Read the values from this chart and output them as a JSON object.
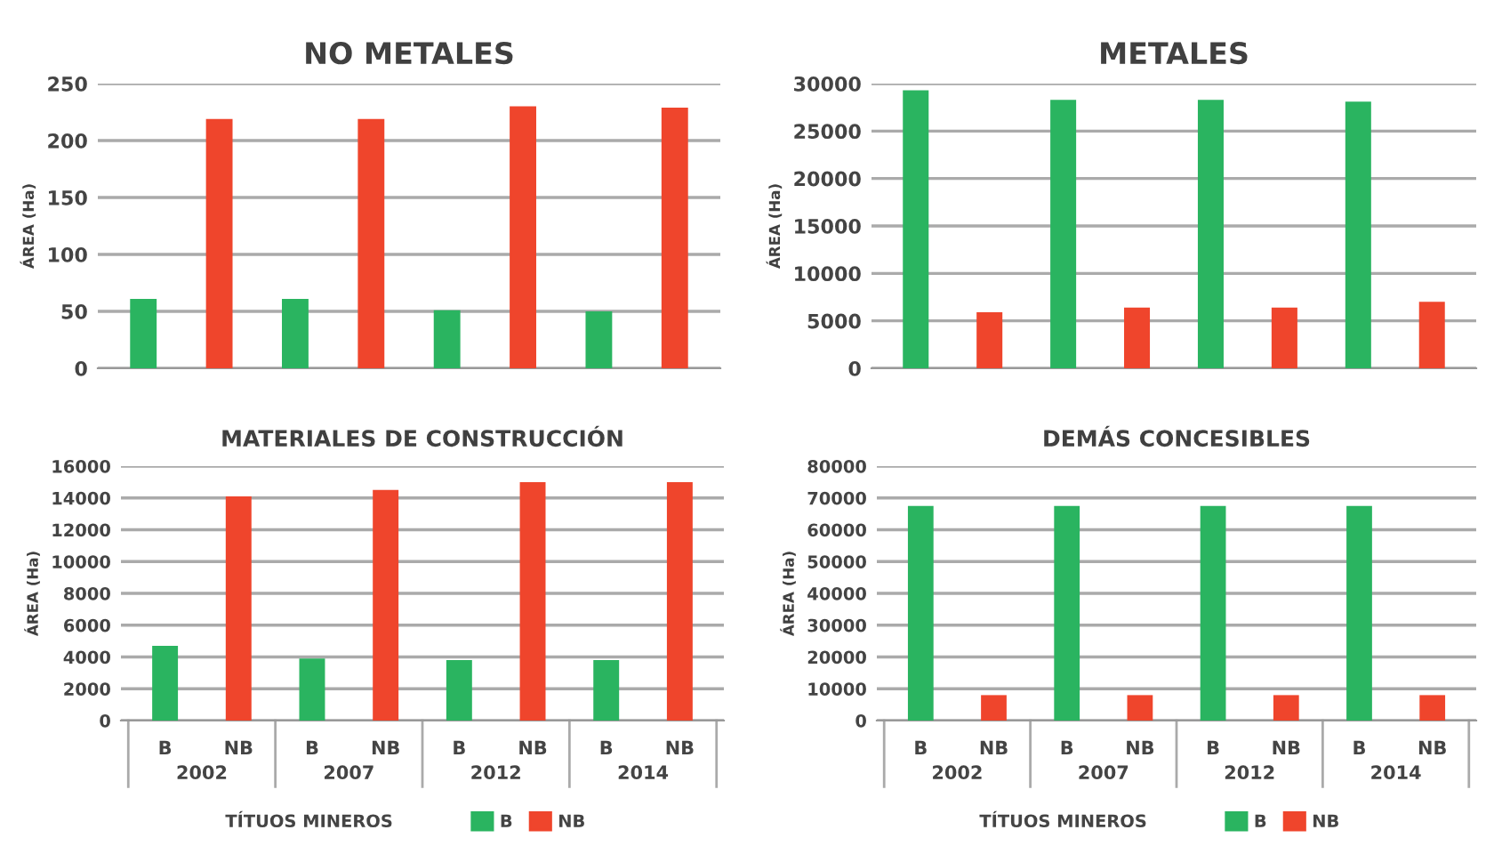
{
  "chart_data": [
    {
      "type": "bar",
      "title": "NO METALES",
      "ylabel": "ÁREA (Ha)",
      "categories": [
        null,
        null,
        null,
        null,
        null,
        null,
        null,
        null
      ],
      "series": [
        {
          "color": "#2ab460",
          "values": [
            61,
            null,
            61,
            null,
            51,
            null,
            50,
            null
          ]
        },
        {
          "color": "#ef452c",
          "values": [
            null,
            219,
            null,
            219,
            null,
            230,
            null,
            229
          ]
        }
      ],
      "ylim": [
        0,
        250
      ],
      "yticks": [
        0,
        50,
        100,
        150,
        200,
        250
      ],
      "grid": "y",
      "legend": false
    },
    {
      "type": "bar",
      "title": "METALES",
      "ylabel": "ÁREA (Ha)",
      "categories": [
        null,
        null,
        null,
        null,
        null,
        null,
        null,
        null
      ],
      "series": [
        {
          "color": "#2ab460",
          "values": [
            29300,
            null,
            28300,
            null,
            28300,
            null,
            28100,
            null
          ]
        },
        {
          "color": "#ef452c",
          "values": [
            null,
            5900,
            null,
            6400,
            null,
            6400,
            null,
            7000
          ]
        }
      ],
      "ylim": [
        0,
        30000
      ],
      "yticks": [
        0,
        5000,
        10000,
        15000,
        20000,
        25000,
        30000
      ],
      "grid": "y",
      "legend": false
    },
    {
      "type": "bar",
      "title": "MATERIALES DE CONSTRUCCIÓN",
      "ylabel": "ÁREA (Ha)",
      "categories": [
        "B",
        "NB",
        "B",
        "NB",
        "B",
        "NB",
        "B",
        "NB"
      ],
      "series": [
        {
          "name": "B",
          "color": "#2ab460",
          "values": [
            4700,
            null,
            3900,
            null,
            3800,
            null,
            3800,
            null
          ]
        },
        {
          "name": "NB",
          "color": "#ef452c",
          "values": [
            null,
            14100,
            null,
            14500,
            null,
            15000,
            null,
            15000
          ]
        }
      ],
      "ylim": [
        0,
        16000
      ],
      "yticks": [
        0,
        2000,
        4000,
        6000,
        8000,
        10000,
        12000,
        14000,
        16000
      ],
      "grid": "y",
      "annotations": [
        "2002",
        "2007",
        "2012",
        "2014"
      ],
      "legend_title": "TÍTUOS MINEROS",
      "legend": "bottom"
    },
    {
      "type": "bar",
      "title": "DEMÁS CONCESIBLES",
      "ylabel": "ÁREA (Ha)",
      "categories": [
        "B",
        "NB",
        "B",
        "NB",
        "B",
        "NB",
        "B",
        "NB"
      ],
      "series": [
        {
          "name": "B",
          "color": "#2ab460",
          "values": [
            67500,
            null,
            67500,
            null,
            67500,
            null,
            67500,
            null
          ]
        },
        {
          "name": "NB",
          "color": "#ef452c",
          "values": [
            null,
            8000,
            null,
            8000,
            null,
            8000,
            null,
            8000
          ]
        }
      ],
      "ylim": [
        0,
        80000
      ],
      "yticks": [
        0,
        10000,
        20000,
        30000,
        40000,
        50000,
        60000,
        70000,
        80000
      ],
      "grid": "y",
      "annotations": [
        "2002",
        "2007",
        "2012",
        "2014"
      ],
      "legend_title": "TÍTUOS MINEROS",
      "legend": "bottom"
    }
  ]
}
